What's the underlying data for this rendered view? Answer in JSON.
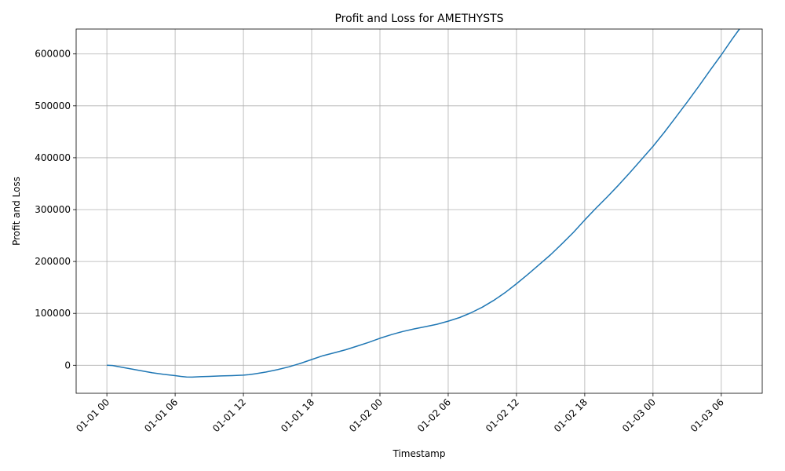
{
  "chart_data": {
    "type": "line",
    "title": "Profit and Loss for AMETHYSTS",
    "xlabel": "Timestamp",
    "ylabel": "Profit and Loss",
    "grid": true,
    "xlim_hours": [
      -2.7,
      57.6
    ],
    "ylim": [
      -54000,
      648000
    ],
    "x_ticks": [
      {
        "label": "01-01 00",
        "hour": 0
      },
      {
        "label": "01-01 06",
        "hour": 6
      },
      {
        "label": "01-01 12",
        "hour": 12
      },
      {
        "label": "01-01 18",
        "hour": 18
      },
      {
        "label": "01-02 00",
        "hour": 24
      },
      {
        "label": "01-02 06",
        "hour": 30
      },
      {
        "label": "01-02 12",
        "hour": 36
      },
      {
        "label": "01-02 18",
        "hour": 42
      },
      {
        "label": "01-03 00",
        "hour": 48
      },
      {
        "label": "01-03 06",
        "hour": 54
      }
    ],
    "y_ticks": [
      {
        "label": "0",
        "value": 0
      },
      {
        "label": "100000",
        "value": 100000
      },
      {
        "label": "200000",
        "value": 200000
      },
      {
        "label": "300000",
        "value": 300000
      },
      {
        "label": "400000",
        "value": 400000
      },
      {
        "label": "500000",
        "value": 500000
      },
      {
        "label": "600000",
        "value": 600000
      }
    ],
    "series": [
      {
        "color": "#1f77b4",
        "x": [
          0,
          0.5,
          1,
          2,
          3,
          4,
          5,
          6,
          6.5,
          7,
          7.5,
          8,
          9,
          10,
          11,
          12,
          12.5,
          13,
          14,
          15,
          16,
          17,
          18,
          19,
          20,
          21,
          22,
          23,
          24,
          25,
          26,
          27,
          28,
          29,
          30,
          31,
          32,
          33,
          34,
          35,
          36,
          37,
          38,
          39,
          40,
          41,
          42,
          43,
          44,
          45,
          46,
          47,
          48,
          49,
          50,
          51,
          52,
          53,
          54,
          55,
          55.6
        ],
        "y": [
          0,
          -500,
          -2500,
          -6500,
          -10500,
          -14500,
          -17500,
          -20000,
          -21500,
          -22500,
          -22800,
          -22300,
          -21500,
          -20500,
          -20000,
          -19000,
          -18000,
          -16500,
          -13000,
          -8500,
          -3000,
          3500,
          11000,
          18500,
          24000,
          30000,
          37000,
          44000,
          52000,
          59000,
          65000,
          70000,
          74500,
          79000,
          85000,
          92000,
          101000,
          112000,
          125000,
          140000,
          157000,
          175000,
          194000,
          213000,
          234000,
          256000,
          280000,
          303000,
          325000,
          348000,
          372000,
          397000,
          422000,
          449000,
          478000,
          507000,
          537000,
          568000,
          598000,
          630000,
          648000
        ]
      }
    ]
  }
}
